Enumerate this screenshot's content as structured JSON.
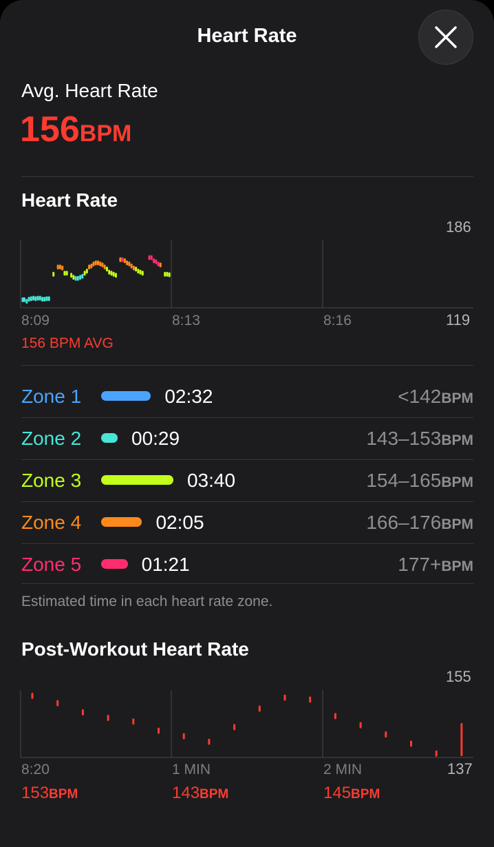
{
  "header": {
    "title": "Heart Rate",
    "close_icon": "xmark-icon"
  },
  "summary": {
    "label": "Avg. Heart Rate",
    "value": "156",
    "unit": "BPM",
    "color": "#ff3b30"
  },
  "heart_rate_chart": {
    "title": "Heart Rate",
    "y_max_label": "186",
    "y_min_label": "119",
    "time_labels": [
      "8:09",
      "8:13",
      "8:16"
    ],
    "avg_label": "156 BPM AVG"
  },
  "zones": {
    "items": [
      {
        "name": "Zone 1",
        "time": "02:32",
        "range": "<142",
        "unit": "BPM",
        "color": "#4aa4ff",
        "minutes": 2.53
      },
      {
        "name": "Zone 2",
        "time": "00:29",
        "range": "143–153",
        "unit": "BPM",
        "color": "#47e5d6",
        "minutes": 0.48
      },
      {
        "name": "Zone 3",
        "time": "03:40",
        "range": "154–165",
        "unit": "BPM",
        "color": "#c2ff1a",
        "minutes": 3.67
      },
      {
        "name": "Zone 4",
        "time": "02:05",
        "range": "166–176",
        "unit": "BPM",
        "color": "#ff8a1c",
        "minutes": 2.08
      },
      {
        "name": "Zone 5",
        "time": "01:21",
        "range": "177+",
        "unit": "BPM",
        "color": "#ff2d6f",
        "minutes": 1.35
      }
    ],
    "footnote": "Estimated time in each heart rate zone."
  },
  "post_workout": {
    "title": "Post-Workout Heart Rate",
    "y_max_label": "155",
    "y_min_label": "137",
    "time_labels": [
      "8:20",
      "1 MIN",
      "2 MIN"
    ],
    "bpm_values": [
      {
        "value": "153",
        "unit": "BPM"
      },
      {
        "value": "143",
        "unit": "BPM"
      },
      {
        "value": "145",
        "unit": "BPM"
      }
    ]
  },
  "chart_data": [
    {
      "type": "scatter",
      "title": "Heart Rate",
      "x_labels": [
        "8:09",
        "8:13",
        "8:16"
      ],
      "ylim": [
        119,
        186
      ],
      "grid": true,
      "points": [
        [
          0.0,
          124.5,
          "#47e5d6"
        ],
        [
          0.15,
          124.5,
          "#47e5d6"
        ],
        [
          0.36,
          123,
          "#47e5d6"
        ],
        [
          0.56,
          125,
          "#47e5d6"
        ],
        [
          0.76,
          125.5,
          "#47e5d6"
        ],
        [
          0.96,
          126,
          "#47e5d6"
        ],
        [
          1.16,
          125.5,
          "#47e5d6"
        ],
        [
          1.36,
          126,
          "#47e5d6"
        ],
        [
          1.56,
          126,
          "#47e5d6"
        ],
        [
          1.76,
          125,
          "#47e5d6"
        ],
        [
          1.96,
          125,
          "#47e5d6"
        ],
        [
          2.16,
          125.5,
          "#47e5d6"
        ],
        [
          2.36,
          125.5,
          "#47e5d6"
        ],
        [
          2.76,
          149,
          "#c2ff1a"
        ],
        [
          3.16,
          156,
          "#ff8a1c"
        ],
        [
          3.36,
          156,
          "#ff8a1c"
        ],
        [
          3.56,
          155,
          "#ff8a1c"
        ],
        [
          3.76,
          150,
          "#c2ff1a"
        ],
        [
          3.96,
          150,
          "#c2ff1a"
        ],
        [
          4.36,
          148,
          "#c2ff1a"
        ],
        [
          4.56,
          146,
          "#c2ff1a"
        ],
        [
          4.76,
          145,
          "#47e5d6"
        ],
        [
          4.96,
          145,
          "#47e5d6"
        ],
        [
          5.16,
          146,
          "#47e5d6"
        ],
        [
          5.36,
          147,
          "#47e5d6"
        ],
        [
          5.56,
          150,
          "#c2ff1a"
        ],
        [
          5.76,
          152,
          "#c2ff1a"
        ],
        [
          5.96,
          156,
          "#ff8a1c"
        ],
        [
          6.16,
          157,
          "#ff8a1c"
        ],
        [
          6.36,
          159,
          "#ff8a1c"
        ],
        [
          6.56,
          160,
          "#ff8a1c"
        ],
        [
          6.76,
          160,
          "#ff8a1c"
        ],
        [
          6.96,
          159,
          "#ff8a1c"
        ],
        [
          7.16,
          158,
          "#ff8a1c"
        ],
        [
          7.36,
          156,
          "#ff8a1c"
        ],
        [
          7.56,
          154,
          "#c2ff1a"
        ],
        [
          7.76,
          151,
          "#c2ff1a"
        ],
        [
          7.96,
          150,
          "#c2ff1a"
        ],
        [
          8.16,
          149,
          "#c2ff1a"
        ],
        [
          8.36,
          148,
          "#c2ff1a"
        ],
        [
          8.76,
          163,
          "#ff8a1c"
        ],
        [
          8.96,
          163,
          "#ff2d6f"
        ],
        [
          9.16,
          162,
          "#ff8a1c"
        ],
        [
          9.36,
          160,
          "#ff8a1c"
        ],
        [
          9.56,
          159,
          "#ff8a1c"
        ],
        [
          9.76,
          157,
          "#ff8a1c"
        ],
        [
          9.96,
          155,
          "#ff8a1c"
        ],
        [
          10.16,
          154,
          "#c2ff1a"
        ],
        [
          10.36,
          152,
          "#c2ff1a"
        ],
        [
          10.56,
          151,
          "#c2ff1a"
        ],
        [
          10.76,
          150,
          "#c2ff1a"
        ],
        [
          11.36,
          165,
          "#ff2d6f"
        ],
        [
          11.56,
          165,
          "#ff2d6f"
        ],
        [
          11.76,
          162,
          "#ff2d6f"
        ],
        [
          11.96,
          161,
          "#ff2d6f"
        ],
        [
          12.16,
          159,
          "#ff2d6f"
        ],
        [
          12.36,
          158,
          "#ff8a1c"
        ],
        [
          12.76,
          149,
          "#c2ff1a"
        ],
        [
          12.96,
          149,
          "#c2ff1a"
        ],
        [
          13.16,
          148.5,
          "#c2ff1a"
        ]
      ]
    },
    {
      "type": "scatter",
      "title": "Post-Workout Heart Rate",
      "x_labels": [
        "8:20",
        "1 MIN",
        "2 MIN"
      ],
      "ylim": [
        137,
        155
      ],
      "grid": true,
      "points": [
        [
          0,
          153.5
        ],
        [
          0.1,
          151.5
        ],
        [
          0.2,
          149
        ],
        [
          0.3,
          147.5
        ],
        [
          0.4,
          146.5
        ],
        [
          0.5,
          144
        ],
        [
          0.6,
          142.5
        ],
        [
          0.7,
          141
        ],
        [
          0.8,
          145
        ],
        [
          0.9,
          150
        ],
        [
          1.0,
          153
        ],
        [
          1.1,
          152.5
        ],
        [
          1.2,
          148
        ],
        [
          1.3,
          145.5
        ],
        [
          1.4,
          143
        ],
        [
          1.5,
          140.5
        ],
        [
          1.6,
          137.8
        ],
        [
          1.7,
          140
        ]
      ]
    }
  ]
}
